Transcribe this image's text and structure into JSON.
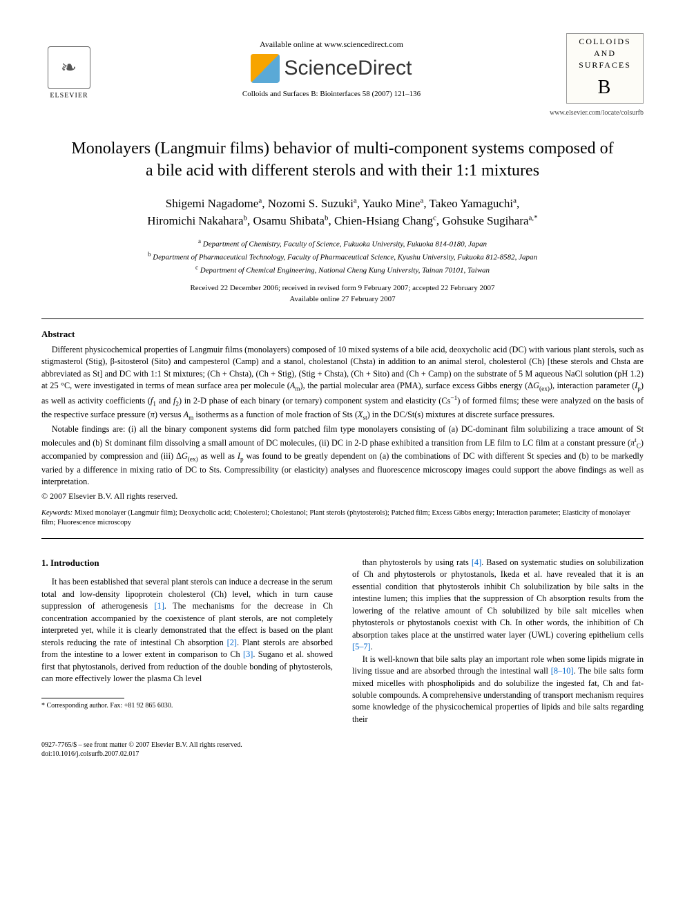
{
  "header": {
    "available_line": "Available online at www.sciencedirect.com",
    "sciencedirect": "ScienceDirect",
    "journal_ref": "Colloids and Surfaces B: Biointerfaces 58 (2007) 121–136",
    "elsevier_label": "ELSEVIER",
    "journal_box_line1": "COLLOIDS",
    "journal_box_line2": "AND",
    "journal_box_line3": "SURFACES",
    "journal_box_b": "B",
    "locate": "www.elsevier.com/locate/colsurfb"
  },
  "title": "Monolayers (Langmuir films) behavior of multi-component systems composed of a bile acid with different sterols and with their 1:1 mixtures",
  "authors_line1_html": "Shigemi Nagadome<sup>a</sup>, Nozomi S. Suzuki<sup>a</sup>, Yauko Mine<sup>a</sup>, Takeo Yamaguchi<sup>a</sup>,",
  "authors_line2_html": "Hiromichi Nakahara<sup>b</sup>, Osamu Shibata<sup>b</sup>, Chien-Hsiang Chang<sup>c</sup>, Gohsuke Sugihara<sup>a,*</sup>",
  "affiliations": {
    "a": "Department of Chemistry, Faculty of Science, Fukuoka University, Fukuoka 814-0180, Japan",
    "b": "Department of Pharmaceutical Technology, Faculty of Pharmaceutical Science, Kyushu University, Fukuoka 812-8582, Japan",
    "c": "Department of Chemical Engineering, National Cheng Kung University, Tainan 70101, Taiwan"
  },
  "dates": {
    "received": "Received 22 December 2006; received in revised form 9 February 2007; accepted 22 February 2007",
    "online": "Available online 27 February 2007"
  },
  "abstract_heading": "Abstract",
  "abstract_p1_html": "Different physicochemical properties of Langmuir films (monolayers) composed of 10 mixed systems of a bile acid, deoxycholic acid (DC) with various plant sterols, such as stigmasterol (Stig), β-sitosterol (Sito) and campesterol (Camp) and a stanol, cholestanol (Chsta) in addition to an animal sterol, cholesterol (Ch) [these sterols and Chsta are abbreviated as St] and DC with 1:1 St mixtures; (Ch + Chsta), (Ch + Stig), (Stig + Chsta), (Ch + Sito) and (Ch + Camp) on the substrate of 5 M aqueous NaCl solution (pH 1.2) at 25 °C, were investigated in terms of mean surface area per molecule (<i>A</i><sub>m</sub>), the partial molecular area (PMA), surface excess Gibbs energy (Δ<i>G</i><sub>(ex)</sub>), interaction parameter (<i>I</i><sub>p</sub>) as well as activity coefficients (<i>f</i><sub>1</sub> and <i>f</i><sub>2</sub>) in 2-D phase of each binary (or ternary) component system and elasticity (Cs<sup>−1</sup>) of formed films; these were analyzed on the basis of the respective surface pressure (<i>π</i>) versus <i>A</i><sub>m</sub> isotherms as a function of mole fraction of Sts (<i>X</i><sub>st</sub>) in the DC/St(s) mixtures at discrete surface pressures.",
  "abstract_p2_html": "Notable findings are: (i) all the binary component systems did form patched film type monolayers consisting of (a) DC-dominant film solubilizing a trace amount of St molecules and (b) St dominant film dissolving a small amount of DC molecules, (ii) DC in 2-D phase exhibited a transition from LE film to LC film at a constant pressure (<i>π</i><sup>t</sup><sub>C</sub>) accompanied by compression and (iii) Δ<i>G</i><sub>(ex)</sub> as well as <i>I</i><sub>p</sub> was found to be greatly dependent on (a) the combinations of DC with different St species and (b) to be markedly varied by a difference in mixing ratio of DC to Sts. Compressibility (or elasticity) analyses and fluorescence microscopy images could support the above findings as well as interpretation.",
  "copyright": "© 2007 Elsevier B.V. All rights reserved.",
  "keywords_label": "Keywords:",
  "keywords_text": "Mixed monolayer (Langmuir film); Deoxycholic acid; Cholesterol; Cholestanol; Plant sterols (phytosterols); Patched film; Excess Gibbs energy; Interaction parameter; Elasticity of monolayer film; Fluorescence microscopy",
  "section1_heading": "1. Introduction",
  "col_left_p1_html": "It has been established that several plant sterols can induce a decrease in the serum total and low-density lipoprotein cholesterol (Ch) level, which in turn cause suppression of atherogenesis <span class=\"ref-link\">[1]</span>. The mechanisms for the decrease in Ch concentration accompanied by the coexistence of plant sterols, are not completely interpreted yet, while it is clearly demonstrated that the effect is based on the plant sterols reducing the rate of intestinal Ch absorption <span class=\"ref-link\">[2]</span>. Plant sterols are absorbed from the intestine to a lower extent in comparison to Ch <span class=\"ref-link\">[3]</span>. Sugano et al. showed first that phytostanols, derived from reduction of the double bonding of phytosterols, can more effectively lower the plasma Ch level",
  "col_right_p1_html": "than phytosterols by using rats <span class=\"ref-link\">[4]</span>. Based on systematic studies on solubilization of Ch and phytosterols or phytostanols, Ikeda et al. have revealed that it is an essential condition that phytosterols inhibit Ch solubilization by bile salts in the intestine lumen; this implies that the suppression of Ch absorption results from the lowering of the relative amount of Ch solubilized by bile salt micelles when phytosterols or phytostanols coexist with Ch. In other words, the inhibition of Ch absorption takes place at the unstirred water layer (UWL) covering epithelium cells <span class=\"ref-link\">[5–7]</span>.",
  "col_right_p2_html": "It is well-known that bile salts play an important role when some lipids migrate in living tissue and are absorbed through the intestinal wall <span class=\"ref-link\">[8–10]</span>. The bile salts form mixed micelles with phospholipids and do solubilize the ingested fat, Ch and fat-soluble compounds. A comprehensive understanding of transport mechanism requires some knowledge of the physicochemical properties of lipids and bile salts regarding their",
  "footnote_html": "* Corresponding author. Fax: +81 92 865 6030.",
  "footer_line1": "0927-7765/$ – see front matter © 2007 Elsevier B.V. All rights reserved.",
  "footer_line2": "doi:10.1016/j.colsurfb.2007.02.017",
  "colors": {
    "text": "#000000",
    "background": "#ffffff",
    "link": "#0066cc",
    "sd_orange": "#f7a400",
    "sd_blue": "#5aa9d6"
  }
}
